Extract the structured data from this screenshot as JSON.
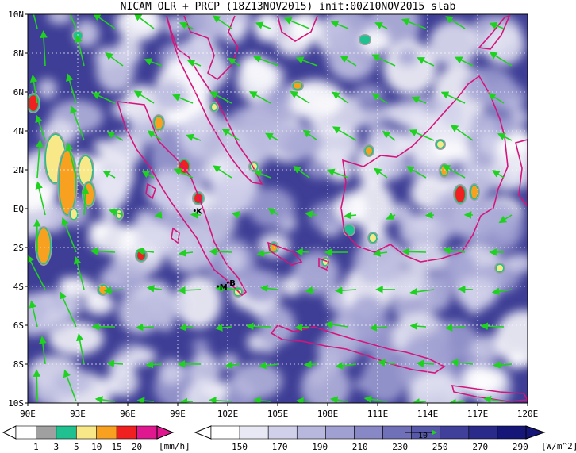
{
  "title": "NICAM OLR + PRCP (18Z13NOV2015) init:00Z10NOV2015 slab",
  "map": {
    "lat_labels": [
      "10N",
      "8N",
      "6N",
      "4N",
      "2N",
      "EQ",
      "2S",
      "4S",
      "6S",
      "8S",
      "10S"
    ],
    "lon_labels": [
      "90E",
      "93E",
      "96E",
      "99E",
      "102E",
      "105E",
      "108E",
      "111E",
      "114E",
      "117E",
      "120E"
    ],
    "lat_range": [
      -10,
      10
    ],
    "lon_range": [
      90,
      120
    ],
    "places": [
      {
        "label": "K",
        "lon": 100.3,
        "lat": -0.1
      },
      {
        "label": "M",
        "lon": 101.7,
        "lat": -4.0
      },
      {
        "label": "B",
        "lon": 102.3,
        "lat": -3.8
      }
    ],
    "olr_color_low": "#f6f6fb",
    "olr_color_high": "#1a1a78",
    "coast_color": "#d4157a",
    "vector_color": "#1fd21f",
    "grid_style": "dotted white"
  },
  "precip_colorbar": {
    "ticks": [
      "1",
      "3",
      "5",
      "10",
      "15",
      "20"
    ],
    "unit": "[mm/h]",
    "colors": [
      "#ffffff",
      "#a0a0a0",
      "#20c090",
      "#f8e888",
      "#f8a020",
      "#f02020",
      "#e01890"
    ]
  },
  "olr_colorbar": {
    "ticks": [
      "150",
      "170",
      "190",
      "210",
      "230",
      "250",
      "270",
      "290"
    ],
    "unit": "[W/m^2]",
    "colors": [
      "#ffffff",
      "#e8e8f4",
      "#d0d0ea",
      "#b8b8de",
      "#a0a0d2",
      "#8888c6",
      "#7070b8",
      "#5858aa",
      "#40409a",
      "#2a2a8a",
      "#161678"
    ],
    "vector_ref": "10"
  }
}
